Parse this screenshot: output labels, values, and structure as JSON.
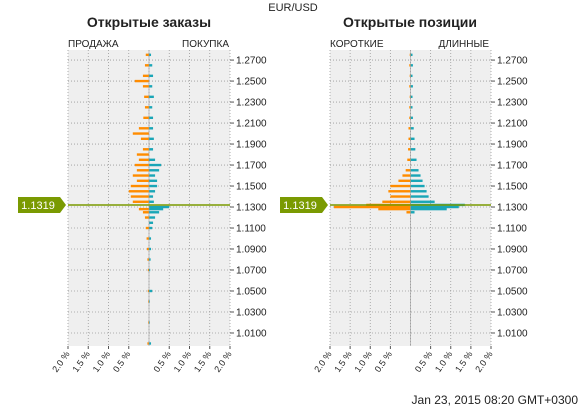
{
  "title": "EUR/USD",
  "timestamp": "Jan 23, 2015 08:20 GMT+0300",
  "colors": {
    "sell": "#ff8c00",
    "buy": "#1aa6b7",
    "price": "#7a9a01",
    "plot_bg": "#efefef",
    "grid": "#9a9a9a"
  },
  "chart_data": [
    {
      "type": "bar",
      "orientation": "horizontal-diverging",
      "title": "Открытые заказы",
      "left_label": "ПРОДАЖА",
      "right_label": "ПОКУПКА",
      "xlim": [
        -2.0,
        2.0
      ],
      "x_ticks": [
        "2.0 %",
        "1.5 %",
        "1.0 %",
        "0.5 %",
        "0.5 %",
        "1.0 %",
        "1.5 %",
        "2.0 %"
      ],
      "y_ticks": [
        "1.2700",
        "1.2500",
        "1.2300",
        "1.2100",
        "1.1900",
        "1.1700",
        "1.1500",
        "1.1300",
        "1.1100",
        "1.0900",
        "1.0700",
        "1.0500",
        "1.0300",
        "1.0100"
      ],
      "current_price": "1.1319",
      "series": [
        {
          "name": "ПРОДАЖА",
          "color": "#ff8c00",
          "points": [
            [
              1.275,
              0.08
            ],
            [
              1.265,
              0.1
            ],
            [
              1.255,
              0.15
            ],
            [
              1.25,
              0.35
            ],
            [
              1.245,
              0.15
            ],
            [
              1.235,
              0.12
            ],
            [
              1.225,
              0.1
            ],
            [
              1.215,
              0.14
            ],
            [
              1.205,
              0.25
            ],
            [
              1.2,
              0.4
            ],
            [
              1.195,
              0.2
            ],
            [
              1.185,
              0.15
            ],
            [
              1.18,
              0.3
            ],
            [
              1.175,
              0.25
            ],
            [
              1.17,
              0.35
            ],
            [
              1.165,
              0.3
            ],
            [
              1.16,
              0.4
            ],
            [
              1.155,
              0.3
            ],
            [
              1.15,
              0.45
            ],
            [
              1.145,
              0.5
            ],
            [
              1.14,
              0.45
            ],
            [
              1.135,
              0.4
            ],
            [
              1.128,
              0.25
            ],
            [
              1.125,
              0.15
            ],
            [
              1.12,
              0.1
            ],
            [
              1.11,
              0.08
            ],
            [
              1.1,
              0.06
            ],
            [
              1.09,
              0.05
            ],
            [
              1.08,
              0.04
            ],
            [
              1.07,
              0.03
            ],
            [
              1.05,
              0.03
            ],
            [
              1.04,
              0.02
            ],
            [
              1.02,
              0.02
            ],
            [
              1.0,
              0.04
            ]
          ]
        },
        {
          "name": "ПОКУПКА",
          "color": "#1aa6b7",
          "points": [
            [
              1.275,
              0.05
            ],
            [
              1.265,
              0.08
            ],
            [
              1.255,
              0.1
            ],
            [
              1.245,
              0.08
            ],
            [
              1.235,
              0.12
            ],
            [
              1.225,
              0.08
            ],
            [
              1.215,
              0.1
            ],
            [
              1.205,
              0.1
            ],
            [
              1.195,
              0.12
            ],
            [
              1.185,
              0.1
            ],
            [
              1.175,
              0.15
            ],
            [
              1.17,
              0.3
            ],
            [
              1.165,
              0.25
            ],
            [
              1.16,
              0.15
            ],
            [
              1.155,
              0.2
            ],
            [
              1.15,
              0.2
            ],
            [
              1.145,
              0.15
            ],
            [
              1.14,
              0.1
            ],
            [
              1.135,
              0.12
            ],
            [
              1.13,
              0.5
            ],
            [
              1.128,
              0.35
            ],
            [
              1.125,
              0.25
            ],
            [
              1.12,
              0.15
            ],
            [
              1.115,
              0.1
            ],
            [
              1.11,
              0.08
            ],
            [
              1.1,
              0.05
            ],
            [
              1.09,
              0.05
            ],
            [
              1.08,
              0.04
            ],
            [
              1.07,
              0.03
            ],
            [
              1.05,
              0.08
            ],
            [
              1.04,
              0.02
            ],
            [
              1.02,
              0.02
            ],
            [
              1.0,
              0.05
            ]
          ]
        }
      ]
    },
    {
      "type": "bar",
      "orientation": "horizontal-diverging",
      "title": "Открытые позиции",
      "left_label": "КОРОТКИЕ",
      "right_label": "ДЛИННЫЕ",
      "xlim": [
        -2.0,
        2.0
      ],
      "x_ticks": [
        "2.0 %",
        "1.5 %",
        "1.0 %",
        "0.5 %",
        "0.5 %",
        "1.0 %",
        "1.5 %",
        "2.0 %"
      ],
      "y_ticks": [
        "1.2700",
        "1.2500",
        "1.2300",
        "1.2100",
        "1.1900",
        "1.1700",
        "1.1500",
        "1.1300",
        "1.1100",
        "1.0900",
        "1.0700",
        "1.0500",
        "1.0300",
        "1.0100"
      ],
      "current_price": "1.1319",
      "series": [
        {
          "name": "КОРОТКИЕ",
          "color": "#ff8c00",
          "points": [
            [
              1.275,
              0.02
            ],
            [
              1.265,
              0.03
            ],
            [
              1.255,
              0.02
            ],
            [
              1.245,
              0.03
            ],
            [
              1.235,
              0.02
            ],
            [
              1.225,
              0.03
            ],
            [
              1.215,
              0.03
            ],
            [
              1.205,
              0.05
            ],
            [
              1.195,
              0.05
            ],
            [
              1.185,
              0.06
            ],
            [
              1.175,
              0.08
            ],
            [
              1.165,
              0.12
            ],
            [
              1.16,
              0.2
            ],
            [
              1.155,
              0.3
            ],
            [
              1.15,
              0.5
            ],
            [
              1.145,
              0.55
            ],
            [
              1.14,
              0.5
            ],
            [
              1.135,
              0.7
            ],
            [
              1.132,
              1.1
            ],
            [
              1.13,
              1.9
            ],
            [
              1.128,
              0.8
            ],
            [
              1.125,
              0.1
            ]
          ]
        },
        {
          "name": "ДЛИННЫЕ",
          "color": "#1aa6b7",
          "points": [
            [
              1.275,
              0.05
            ],
            [
              1.265,
              0.06
            ],
            [
              1.255,
              0.05
            ],
            [
              1.245,
              0.06
            ],
            [
              1.235,
              0.05
            ],
            [
              1.225,
              0.05
            ],
            [
              1.215,
              0.06
            ],
            [
              1.205,
              0.08
            ],
            [
              1.195,
              0.1
            ],
            [
              1.185,
              0.12
            ],
            [
              1.175,
              0.15
            ],
            [
              1.165,
              0.2
            ],
            [
              1.16,
              0.25
            ],
            [
              1.155,
              0.3
            ],
            [
              1.15,
              0.35
            ],
            [
              1.145,
              0.4
            ],
            [
              1.14,
              0.45
            ],
            [
              1.135,
              0.6
            ],
            [
              1.132,
              1.35
            ],
            [
              1.13,
              1.2
            ],
            [
              1.128,
              0.9
            ],
            [
              1.125,
              0.1
            ]
          ]
        }
      ]
    }
  ]
}
